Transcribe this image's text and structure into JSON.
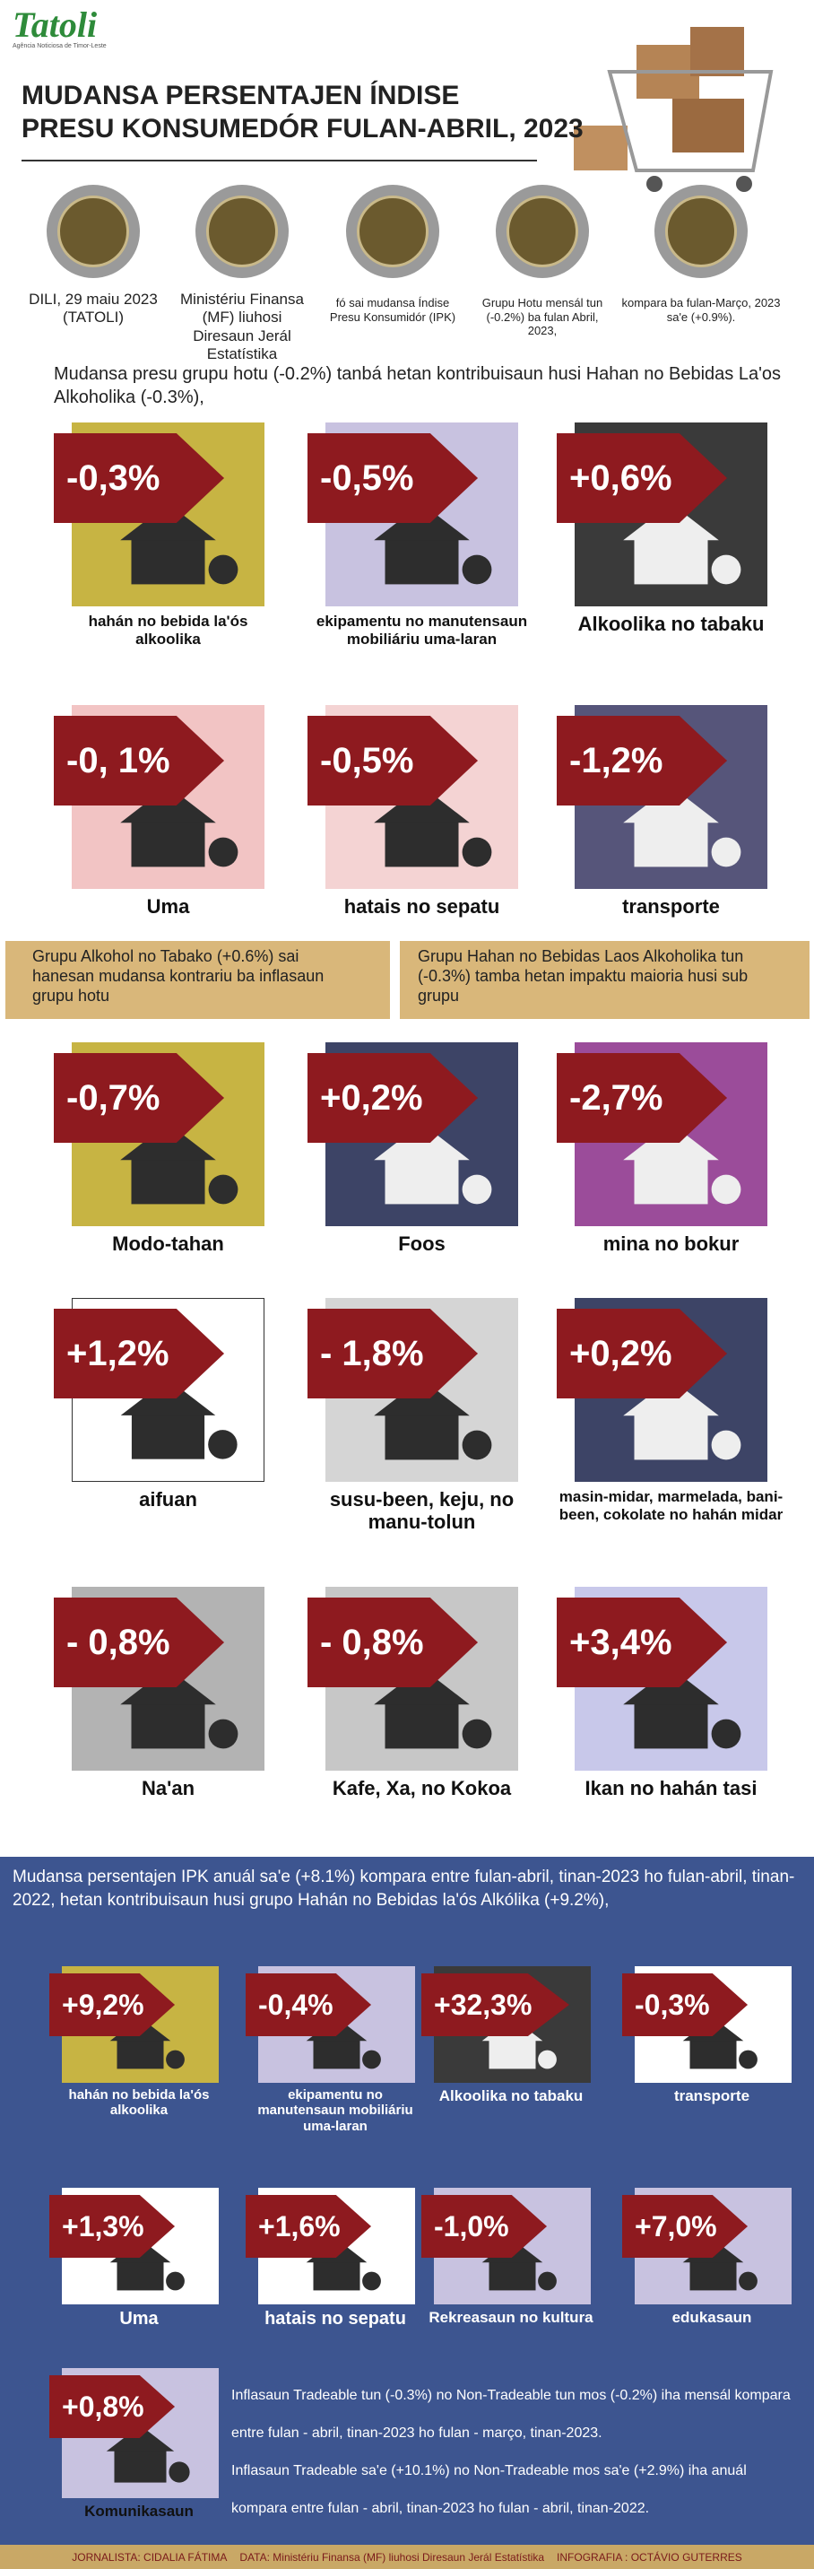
{
  "header": {
    "logo": "Tatoli",
    "logo_sub": "Agência Noticiosa de Timor-Leste",
    "title_lines": [
      "MUDANSA PERSENTAJEN ÍNDISE",
      "PRESU KONSUMEDÓR FULAN-ABRIL, 2023"
    ]
  },
  "info": [
    "DILI, 29 maiu 2023 (TATOLI)",
    "Ministériu Finansa (MF) liuhosi Diresaun Jerál Estatístika",
    "fó sai mudansa Índise Presu Konsumidór (IPK)",
    "Grupu Hotu mensál tun (-0.2%) ba fulan Abril, 2023,",
    "kompara ba fulan-Março, 2023 sa'e (+0.9%)."
  ],
  "monthly": {
    "intro": "Mudansa presu grupu hotu (-0.2%) tanbá hetan kontribuisaun husi Hahan no Bebidas La'os Alkoholika (-0.3%),",
    "tiles": [
      {
        "value": "-0,3%",
        "label": "hahán no bebida la'ós alkoolika"
      },
      {
        "value": "-0,5%",
        "label": "ekipamentu no manutensaun mobiliáriu uma-laran"
      },
      {
        "value": "+0,6%",
        "label": "Alkoolika no tabaku"
      },
      {
        "value": "-0, 1%",
        "label": "Uma"
      },
      {
        "value": "-0,5%",
        "label": "hatais no sepatu"
      },
      {
        "value": "-1,2%",
        "label": "transporte"
      },
      {
        "value": "-0,7%",
        "label": "Modo-tahan"
      },
      {
        "value": "+0,2%",
        "label": "Foos"
      },
      {
        "value": "-2,7%",
        "label": "mina no bokur"
      },
      {
        "value": "+1,2%",
        "label": "aifuan"
      },
      {
        "value": "- 1,8%",
        "label": "susu-been, keju, no manu-tolun"
      },
      {
        "value": "+0,2%",
        "label": "masin-midar, marmelada, bani-been, cokolate no hahán midar"
      },
      {
        "value": "- 0,8%",
        "label": "Na'an"
      },
      {
        "value": "- 0,8%",
        "label": "Kafe, Xa, no Kokoa"
      },
      {
        "value": "+3,4%",
        "label": "Ikan no hahán tasi"
      }
    ],
    "notes": [
      "Grupu Alkohol no Tabako (+0.6%) sai hanesan mudansa kontrariu ba inflasaun grupu hotu",
      "Grupu Hahan no Bebidas Laos Alkoholika tun (-0.3%) tamba hetan impaktu maioria husi sub grupu"
    ]
  },
  "annual": {
    "intro": "Mudansa persentajen IPK anuál sa'e (+8.1%) kompara entre fulan-abril, tinan-2023 ho fulan-abril, tinan- 2022, hetan kontribuisaun husi grupo Hahán no Bebidas la'ós Alkólika (+9.2%),",
    "tiles": [
      {
        "value": "+9,2%",
        "label": "hahán no bebida la'ós alkoolika"
      },
      {
        "value": "-0,4%",
        "label": "ekipamentu no manutensaun mobiliáriu uma-laran"
      },
      {
        "value": "+32,3%",
        "label": "Alkoolika no tabaku"
      },
      {
        "value": "-0,3%",
        "label": "transporte"
      },
      {
        "value": "+1,3%",
        "label": "Uma"
      },
      {
        "value": "+1,6%",
        "label": "hatais no sepatu"
      },
      {
        "value": "-1,0%",
        "label": "Rekreasaun no kultura"
      },
      {
        "value": "+7,0%",
        "label": "edukasaun"
      },
      {
        "value": "+0,8%",
        "label": "Komunikasaun"
      }
    ],
    "notes": [
      "Inflasaun Tradeable tun (-0.3%) no Non-Tradeable tun mos (-0.2%) iha mensál kompara entre fulan - abril, tinan-2023 ho fulan - março, tinan-2023.",
      "Inflasaun Tradeable sa'e (+10.1%) no Non-Tradeable mos sa'e (+2.9%) iha anuál kompara entre fulan - abril, tinan-2023 ho fulan - abril, tinan-2022."
    ]
  },
  "footer": [
    "JORNALISTA: CIDALIA FÁTIMA",
    "DATA: Ministériu Finansa (MF) liuhosi Diresaun Jerál Estatístika",
    "INFOGRAFIA : OCTÁVIO GUTERRES"
  ]
}
